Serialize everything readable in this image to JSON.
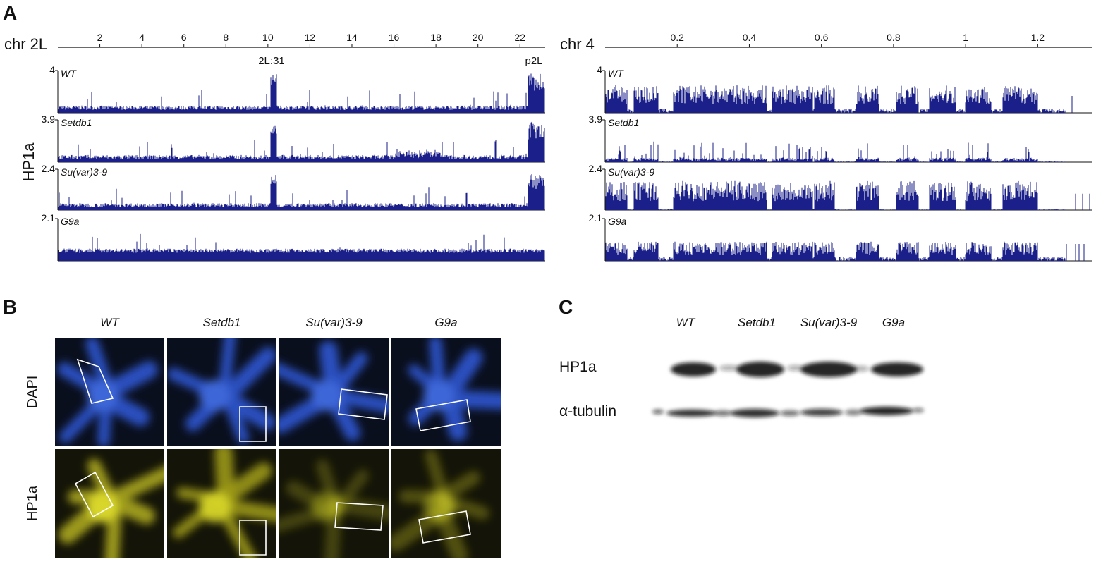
{
  "figure": {
    "panel_a": {
      "label": "A",
      "y_label": "HP1a",
      "tracks": [
        {
          "name": "WT",
          "max": 4
        },
        {
          "name": "Setdb1",
          "max": 3.9
        },
        {
          "name": "Su(var)3-9",
          "max": 2.4
        },
        {
          "name": "G9a",
          "max": 2.1
        }
      ],
      "chromosomes": [
        {
          "name": "chr 2L",
          "xlim": [
            0,
            23.2
          ],
          "xticks": [
            2,
            4,
            6,
            8,
            10,
            12,
            14,
            16,
            18,
            20,
            22
          ],
          "annotations": [
            "2L:31",
            "p2L"
          ]
        },
        {
          "name": "chr 4",
          "xlim": [
            0,
            1.35
          ],
          "xticks": [
            0.2,
            0.4,
            0.6,
            0.8,
            1,
            1.2
          ]
        }
      ]
    },
    "panel_b": {
      "label": "B",
      "columns": [
        "WT",
        "Setdb1",
        "Su(var)3-9",
        "G9a"
      ],
      "rows": [
        "DAPI",
        "HP1a"
      ]
    },
    "panel_c": {
      "label": "C",
      "columns": [
        "WT",
        "Setdb1",
        "Su(var)3-9",
        "G9a"
      ],
      "rows": [
        "HP1a",
        "α-tubulin"
      ]
    }
  }
}
